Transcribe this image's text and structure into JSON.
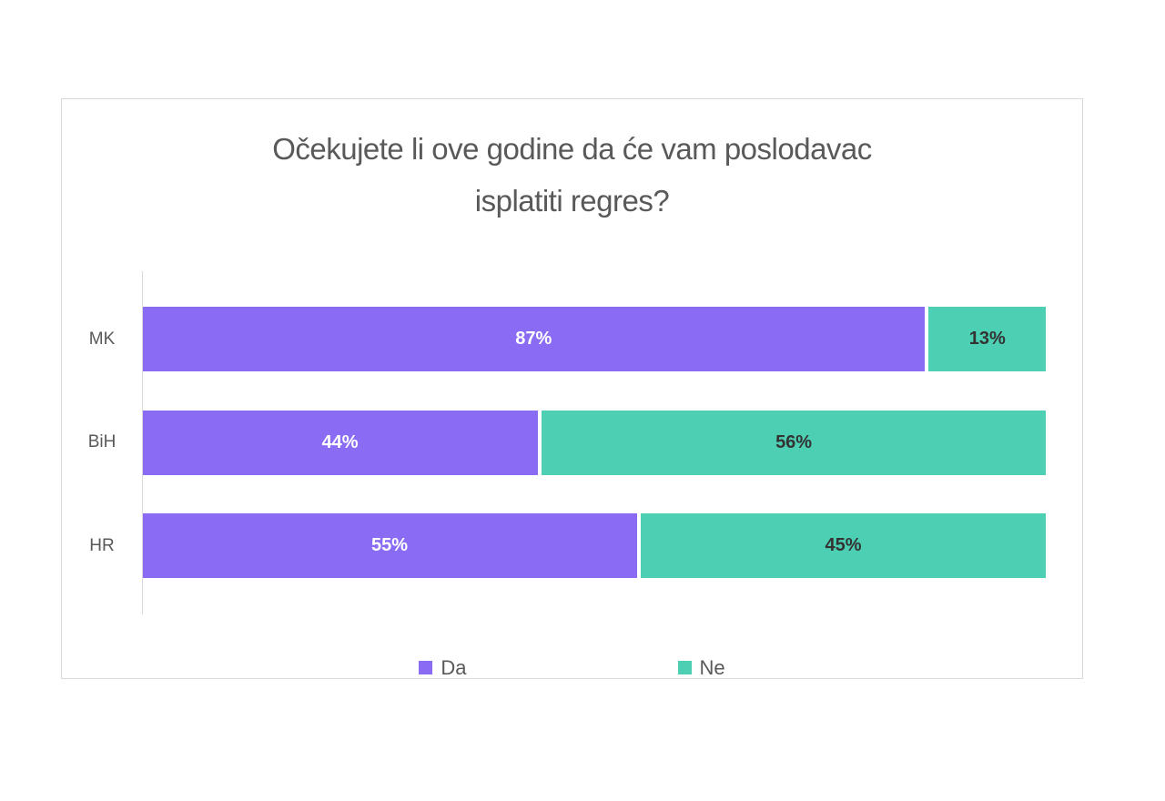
{
  "chart_data": {
    "type": "bar",
    "orientation": "horizontal",
    "stacked": true,
    "title": "Očekujete li ove godine da će vam poslodavac isplatiti regres?",
    "title_lines": [
      "Očekujete li ove godine da će vam poslodavac",
      "isplatiti regres?"
    ],
    "categories": [
      "MK",
      "BiH",
      "HR"
    ],
    "series": [
      {
        "name": "Da",
        "color": "#8a6bf4",
        "label_color": "#ffffff",
        "values": [
          87,
          44,
          55
        ]
      },
      {
        "name": "Ne",
        "color": "#4dcfb3",
        "label_color": "#333333",
        "values": [
          13,
          56,
          45
        ]
      }
    ],
    "value_suffix": "%",
    "xlim": [
      0,
      100
    ],
    "grid": false,
    "legend_position": "bottom"
  },
  "colors": {
    "title_text": "#595959",
    "category_text": "#595959",
    "legend_text": "#595959",
    "card_border": "#d9d9d9",
    "axis_line": "#d9d9d9",
    "background": "#ffffff"
  }
}
